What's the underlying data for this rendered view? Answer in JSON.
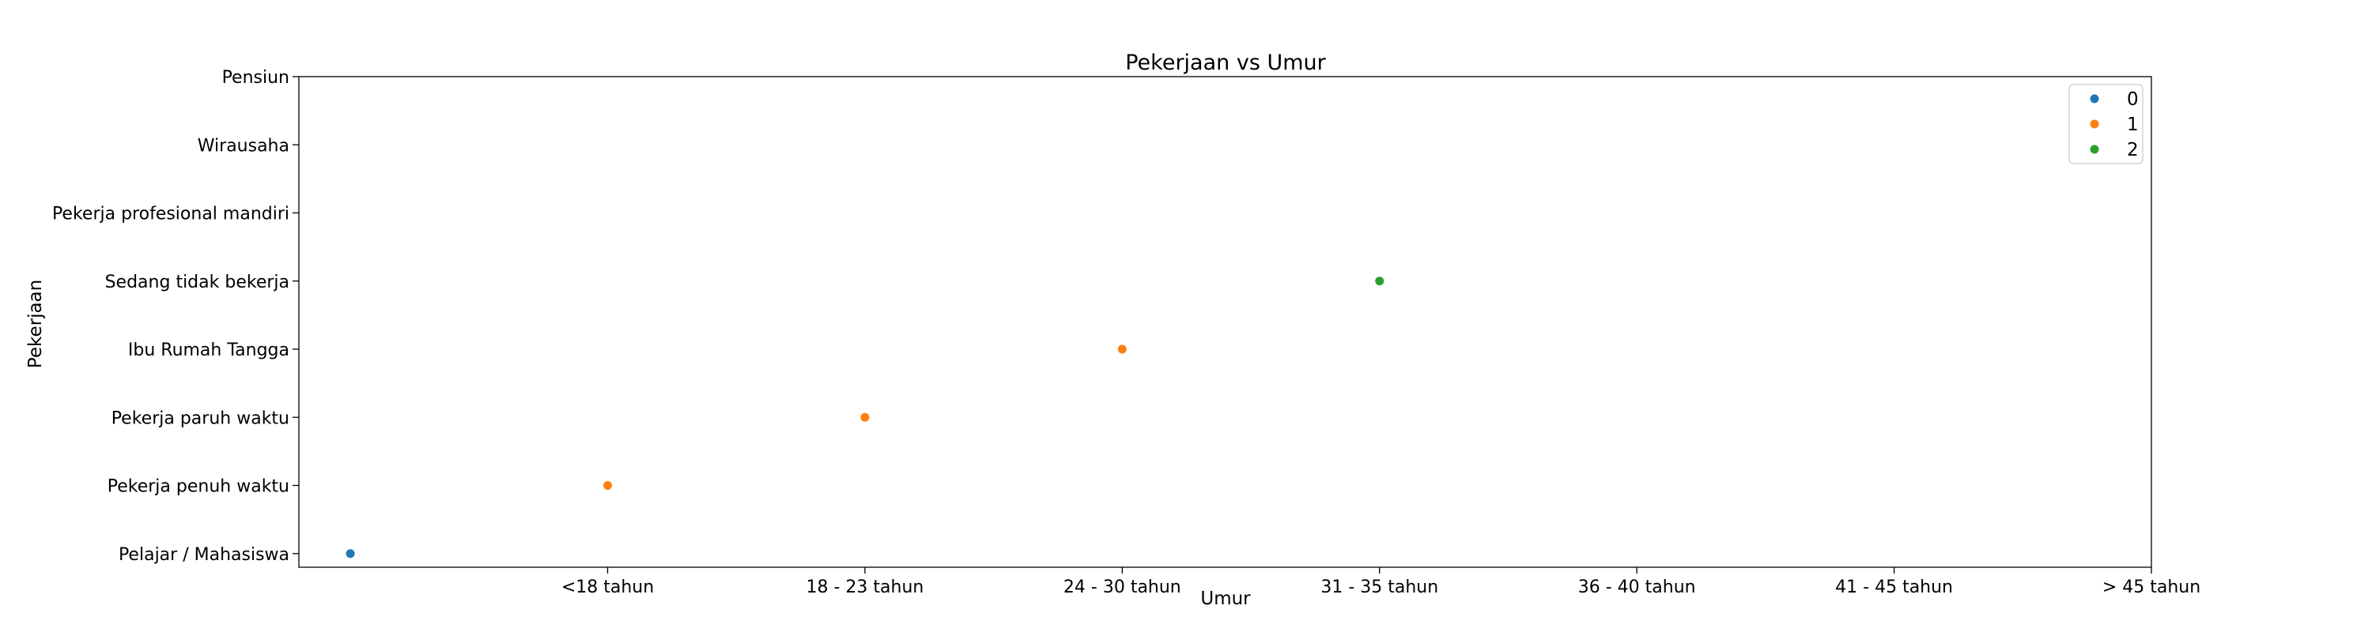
{
  "chart_data": {
    "type": "scatter",
    "title": "Pekerjaan vs Umur",
    "xlabel": "Umur",
    "ylabel": "Pekerjaan",
    "x_categories": [
      "<18 tahun",
      "18 - 23 tahun",
      "24 - 30 tahun",
      "31 - 35 tahun",
      "36 - 40 tahun",
      "41 - 45 tahun",
      "> 45 tahun"
    ],
    "y_categories": [
      "Pelajar / Mahasiswa",
      "Pekerja penuh waktu",
      "Pekerja paruh waktu",
      "Ibu Rumah Tangga",
      "Sedang tidak bekerja",
      "Pekerja profesional mandiri",
      "Wirausaha",
      "Pensiun"
    ],
    "xlim": [
      -1.2,
      6.0
    ],
    "ylim": [
      -0.2,
      7.0
    ],
    "grid": false,
    "legend_position": "top-right",
    "series": [
      {
        "name": "0",
        "color": "#1f77b4",
        "points": [
          {
            "x": -1.0,
            "y": "Pelajar / Mahasiswa"
          }
        ]
      },
      {
        "name": "1",
        "color": "#ff7f0e",
        "points": [
          {
            "x": "<18 tahun",
            "y": "Pekerja penuh waktu"
          },
          {
            "x": "18 - 23 tahun",
            "y": "Pekerja paruh waktu"
          },
          {
            "x": "24 - 30 tahun",
            "y": "Ibu Rumah Tangga"
          }
        ]
      },
      {
        "name": "2",
        "color": "#2ca02c",
        "points": [
          {
            "x": "31 - 35 tahun",
            "y": "Sedang tidak bekerja"
          }
        ]
      }
    ]
  }
}
